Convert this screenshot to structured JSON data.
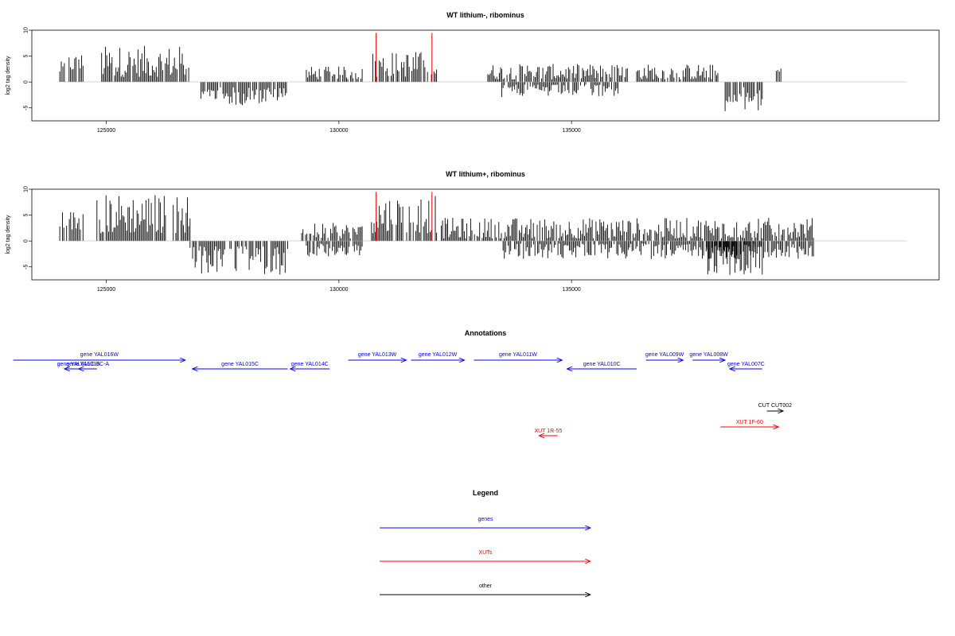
{
  "chart_data": [
    {
      "type": "bar",
      "title": "WT lithium-, ribominus",
      "ylabel": "log2 tag density",
      "xlabel": "",
      "xlim": [
        123400,
        142900
      ],
      "ylim": [
        -7.5,
        10
      ],
      "x_ticks": [
        "125000",
        "130000",
        "135000"
      ],
      "y_ticks": [
        "10",
        "5",
        "0",
        "-5"
      ],
      "highlight_positions": [
        130800,
        132000
      ],
      "highlight_color": "#ff0000",
      "bar_color": "#000000",
      "segments": [
        {
          "start": 124000,
          "end": 124100,
          "sign": 1,
          "min": 1.5,
          "max": 4.0
        },
        {
          "start": 124200,
          "end": 124500,
          "sign": 1,
          "min": 2.0,
          "max": 5.5
        },
        {
          "start": 124900,
          "end": 126800,
          "sign": 1,
          "min": 1.0,
          "max": 7.0
        },
        {
          "start": 126950,
          "end": 128900,
          "sign": -1,
          "min": 1.0,
          "max": 4.5
        },
        {
          "start": 129300,
          "end": 130500,
          "sign": 1,
          "min": 0.5,
          "max": 3.0
        },
        {
          "start": 130700,
          "end": 132100,
          "sign": 1,
          "min": 1.0,
          "max": 6.0
        },
        {
          "start": 133200,
          "end": 136200,
          "sign": 1,
          "min": 0.5,
          "max": 3.5
        },
        {
          "start": 133500,
          "end": 136000,
          "sign": -1,
          "min": 0.5,
          "max": 3.0
        },
        {
          "start": 136400,
          "end": 138200,
          "sign": 1,
          "min": 0.5,
          "max": 3.5
        },
        {
          "start": 138300,
          "end": 139100,
          "sign": -1,
          "min": 1.0,
          "max": 5.8
        },
        {
          "start": 139400,
          "end": 139500,
          "sign": 1,
          "min": 1.5,
          "max": 3.0
        }
      ]
    },
    {
      "type": "bar",
      "title": "WT lithium+, ribominus",
      "ylabel": "log2 tag density",
      "xlabel": "",
      "xlim": [
        123400,
        142900
      ],
      "ylim": [
        -7.5,
        10
      ],
      "x_ticks": [
        "125000",
        "130000",
        "135000"
      ],
      "y_ticks": [
        "10",
        "5",
        "0",
        "-5"
      ],
      "highlight_positions": [
        130800,
        132000
      ],
      "highlight_color": "#ff0000",
      "bar_color": "#000000",
      "segments": [
        {
          "start": 124000,
          "end": 124500,
          "sign": 1,
          "min": 2.0,
          "max": 6.0
        },
        {
          "start": 124800,
          "end": 126800,
          "sign": 1,
          "min": 1.5,
          "max": 9.2
        },
        {
          "start": 126800,
          "end": 128900,
          "sign": -1,
          "min": 1.0,
          "max": 6.5
        },
        {
          "start": 129200,
          "end": 130500,
          "sign": 1,
          "min": 0.5,
          "max": 3.5
        },
        {
          "start": 129300,
          "end": 130500,
          "sign": -1,
          "min": 0.5,
          "max": 3.0
        },
        {
          "start": 130700,
          "end": 132100,
          "sign": 1,
          "min": 1.5,
          "max": 9.0
        },
        {
          "start": 132200,
          "end": 140200,
          "sign": 1,
          "min": 0.5,
          "max": 4.5
        },
        {
          "start": 133500,
          "end": 140200,
          "sign": -1,
          "min": 0.5,
          "max": 3.5
        },
        {
          "start": 137900,
          "end": 139100,
          "sign": -1,
          "min": 1.0,
          "max": 6.8
        }
      ]
    }
  ],
  "annotations": {
    "title": "Annotations",
    "genes_color": "#0000ff",
    "xuts_color": "#ff0000",
    "other_color": "#000000",
    "items": [
      {
        "label": "gene YAL016W",
        "start": 123000,
        "end": 126700,
        "strand": "+",
        "row": 1,
        "color": "#0000ff"
      },
      {
        "label": "gene YAL016C-B",
        "start": 124700,
        "end": 124100,
        "strand": "-",
        "row": 2,
        "color": "#0000ff"
      },
      {
        "label": "gene YAL016C-A",
        "start": 124800,
        "end": 124400,
        "strand": "-",
        "row": 2,
        "color": "#0000ff"
      },
      {
        "label": "gene YAL015C",
        "start": 128900,
        "end": 126850,
        "strand": "-",
        "row": 2,
        "color": "#0000ff"
      },
      {
        "label": "gene YAL014C",
        "start": 129800,
        "end": 128950,
        "strand": "-",
        "row": 2,
        "color": "#0000ff"
      },
      {
        "label": "gene YAL013W",
        "start": 130200,
        "end": 131450,
        "strand": "+",
        "row": 1,
        "color": "#0000ff"
      },
      {
        "label": "gene YAL012W",
        "start": 131550,
        "end": 132700,
        "strand": "+",
        "row": 1,
        "color": "#0000ff"
      },
      {
        "label": "gene YAL011W",
        "start": 132900,
        "end": 134800,
        "strand": "+",
        "row": 1,
        "color": "#0000ff"
      },
      {
        "label": "gene YAL010C",
        "start": 136400,
        "end": 134900,
        "strand": "-",
        "row": 2,
        "color": "#0000ff"
      },
      {
        "label": "gene YAL009W",
        "start": 136600,
        "end": 137400,
        "strand": "+",
        "row": 1,
        "color": "#0000ff"
      },
      {
        "label": "gene YAL008W",
        "start": 137600,
        "end": 138300,
        "strand": "+",
        "row": 1,
        "color": "#0000ff"
      },
      {
        "label": "gene YAL007C",
        "start": 139100,
        "end": 138400,
        "strand": "-",
        "row": 2,
        "color": "#0000ff"
      },
      {
        "label": "CUT CUT002",
        "start": 139200,
        "end": 139550,
        "strand": "+",
        "row": 3,
        "color": "#000000"
      },
      {
        "label": "XUT 1F-60",
        "start": 138200,
        "end": 139450,
        "strand": "+",
        "row": 4,
        "color": "#ff0000"
      },
      {
        "label": "XUT 1R-55",
        "start": 134700,
        "end": 134300,
        "strand": "-",
        "row": 5,
        "color": "#ff0000"
      }
    ]
  },
  "legend": {
    "title": "Legend",
    "entries": [
      {
        "label": "genes",
        "color": "#0000ff"
      },
      {
        "label": "XUTs",
        "color": "#ff0000"
      },
      {
        "label": "other",
        "color": "#000000"
      }
    ]
  }
}
